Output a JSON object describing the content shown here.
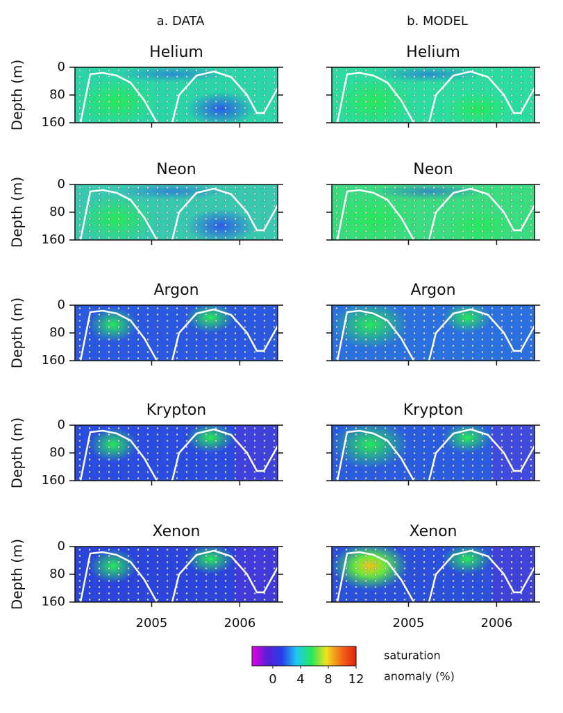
{
  "columns": [
    "a. DATA",
    "b. MODEL"
  ],
  "panels": [
    "Helium",
    "Neon",
    "Argon",
    "Krypton",
    "Xenon"
  ],
  "y_label": "Depth (m)",
  "ylim": [
    0,
    160
  ],
  "yticks": [
    0,
    80,
    160
  ],
  "xlim": [
    2004.13,
    2006.43
  ],
  "xticks": [
    2005,
    2006
  ],
  "colorbar": {
    "clim": [
      -3,
      12
    ],
    "ticks": [
      0,
      4,
      8,
      12
    ],
    "colormap": [
      "#e600e6",
      "#5a1fd6",
      "#2a3ce8",
      "#1ec8f0",
      "#27e85a",
      "#f2e01e",
      "#f26a1a",
      "#e02010"
    ],
    "label": [
      "saturation",
      "anomaly (%)"
    ]
  }
}
